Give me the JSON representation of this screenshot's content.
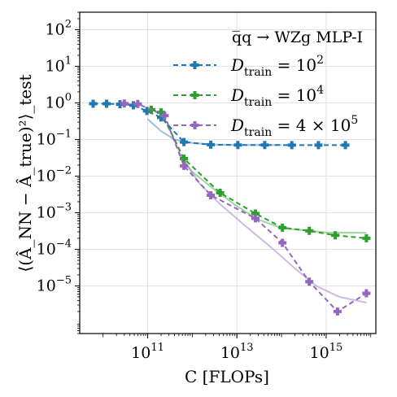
{
  "chart_data": {
    "type": "line",
    "title": "q̅q → WZg MLP-I",
    "title_parts": {
      "process": "q̅q → WZg",
      "model": "MLP-I"
    },
    "xlabel": "C [FLOPs]",
    "ylabel": "⟨(Â_NN − Â_true)²⟩_test",
    "xscale": "log",
    "yscale": "log",
    "xlim": [
      3000000000.0,
      1.3e+16
    ],
    "ylim": [
      5e-07,
      300
    ],
    "x_ticks": [
      {
        "value": 100000000000.0,
        "base": "10",
        "exp": "11"
      },
      {
        "value": 10000000000000.0,
        "base": "10",
        "exp": "13"
      },
      {
        "value": 1000000000000000.0,
        "base": "10",
        "exp": "15"
      }
    ],
    "y_ticks": [
      {
        "value": 100.0,
        "base": "10",
        "exp": "2"
      },
      {
        "value": 10.0,
        "base": "10",
        "exp": "1"
      },
      {
        "value": 1.0,
        "base": "10",
        "exp": "0"
      },
      {
        "value": 0.1,
        "base": "10",
        "exp": "−1"
      },
      {
        "value": 0.01,
        "base": "10",
        "exp": "−2"
      },
      {
        "value": 0.001,
        "base": "10",
        "exp": "−3"
      },
      {
        "value": 0.0001,
        "base": "10",
        "exp": "−4"
      },
      {
        "value": 1e-05,
        "base": "10",
        "exp": "−5"
      }
    ],
    "grid": true,
    "legend_position": "top-right",
    "series": [
      {
        "name": "D_train = 10^2",
        "legend": {
          "prefix": "D",
          "sub": "train",
          "rel": " = 10",
          "sup": "2",
          "tail": ""
        },
        "color": "#1f77b4",
        "x": [
          6000000000.0,
          12000000000.0,
          24000000000.0,
          48000000000.0,
          96000000000.0,
          200000000000.0,
          650000000000.0,
          2600000000000.0,
          10500000000000.0,
          42000000000000.0,
          170000000000000.0,
          670000000000000.0,
          2700000000000000.0
        ],
        "y": [
          0.95,
          0.95,
          0.92,
          0.86,
          0.6,
          0.4,
          0.085,
          0.072,
          0.071,
          0.071,
          0.07,
          0.07,
          0.07
        ],
        "fit_x": [
          100000000000.0,
          200000000000.0,
          400000000000.0,
          1000000000000.0,
          3000000000000.0,
          10000000000000.0,
          100000000000000.0
        ],
        "fit_y": [
          0.36,
          0.17,
          0.1,
          0.08,
          0.073,
          0.071,
          0.07
        ]
      },
      {
        "name": "D_train = 10^4",
        "legend": {
          "prefix": "D",
          "sub": "train",
          "rel": " = 10",
          "sup": "4",
          "tail": ""
        },
        "color": "#2ca02c",
        "x": [
          120000000000.0,
          200000000000.0,
          650000000000.0,
          4200000000000.0,
          26000000000000.0,
          105000000000000.0,
          420000000000000.0,
          1600000000000000.0,
          8000000000000000.0
        ],
        "y": [
          0.65,
          0.55,
          0.03,
          0.0035,
          0.00095,
          0.00039,
          0.00032,
          0.00024,
          0.0002
        ],
        "fit_x": [
          500000000000.0,
          1000000000000.0,
          3000000000000.0,
          10000000000000.0,
          30000000000000.0,
          100000000000000.0,
          1000000000000000.0,
          8000000000000000.0
        ],
        "fit_y": [
          0.04,
          0.013,
          0.0045,
          0.0015,
          0.00065,
          0.00038,
          0.00029,
          0.00028
        ]
      },
      {
        "name": "D_train = 4 × 10^5",
        "legend": {
          "prefix": "D",
          "sub": "train",
          "rel": " = 4 × 10",
          "sup": "5",
          "tail": ""
        },
        "color": "#9467bd",
        "x": [
          30000000000.0,
          60000000000.0,
          240000000000.0,
          650000000000.0,
          2600000000000.0,
          26000000000000.0,
          105000000000000.0,
          420000000000000.0,
          1800000000000000.0,
          8000000000000000.0
        ],
        "y": [
          0.96,
          0.94,
          0.45,
          0.019,
          0.003,
          0.0007,
          0.00015,
          1.3e-05,
          2e-06,
          6.3e-06
        ],
        "fit_x": [
          300000000000.0,
          600000000000.0,
          1500000000000.0,
          4000000000000.0,
          15000000000000.0,
          60000000000000.0,
          200000000000000.0,
          600000000000000.0,
          2000000000000000.0,
          8000000000000000.0
        ],
        "fit_y": [
          0.2,
          0.03,
          0.006,
          0.0018,
          0.00045,
          0.00011,
          3e-05,
          1e-05,
          5e-06,
          3.5e-06
        ]
      }
    ]
  }
}
